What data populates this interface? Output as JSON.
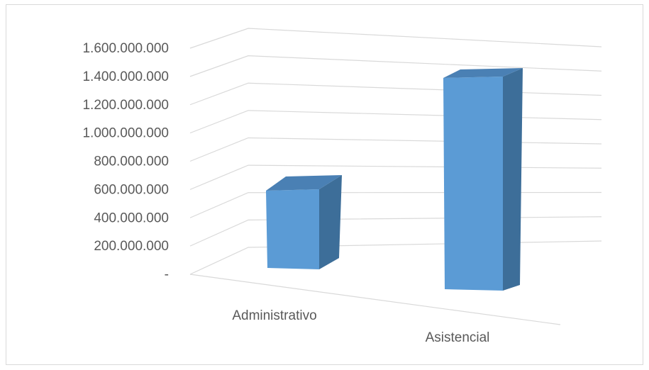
{
  "chart_data": {
    "type": "bar",
    "view": "3d-column",
    "title": "",
    "xlabel": "",
    "ylabel": "",
    "categories": [
      "Administrativo",
      "Asistencial"
    ],
    "series": [
      {
        "values": [
          560000000,
          1390000000
        ]
      }
    ],
    "ylim": [
      0,
      1600000000
    ],
    "ytick_values": [
      0,
      200000000,
      400000000,
      600000000,
      800000000,
      1000000000,
      1200000000,
      1400000000,
      1600000000
    ],
    "yticks": [
      "-",
      "200.000.000",
      "400.000.000",
      "600.000.000",
      "800.000.000",
      "1.000.000.000",
      "1.200.000.000",
      "1.400.000.000",
      "1.600.000.000"
    ],
    "grid": true,
    "legend": "none",
    "colors": {
      "bar_front": "#5b9bd5",
      "bar_side": "#3d6e99",
      "bar_top": "#4a80b4",
      "grid": "#d9d9d9",
      "text": "#595959"
    }
  }
}
